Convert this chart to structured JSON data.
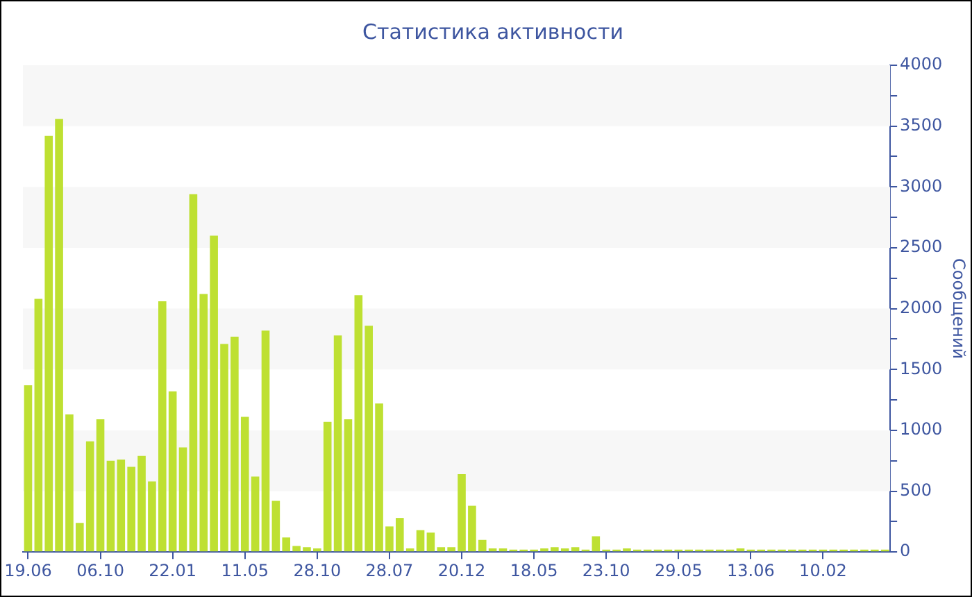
{
  "chart_data": {
    "type": "bar",
    "title": "Статистика активности",
    "ylabel": "Сообщений",
    "categories": [
      "19.06",
      null,
      null,
      null,
      null,
      null,
      null,
      "06.10",
      null,
      null,
      null,
      null,
      null,
      null,
      "22.01",
      null,
      null,
      null,
      null,
      null,
      null,
      "11.05",
      null,
      null,
      null,
      null,
      null,
      null,
      "28.10",
      null,
      null,
      null,
      null,
      null,
      null,
      "28.07",
      null,
      null,
      null,
      null,
      null,
      null,
      "20.12",
      null,
      null,
      null,
      null,
      null,
      null,
      "18.05",
      null,
      null,
      null,
      null,
      null,
      null,
      "23.10",
      null,
      null,
      null,
      null,
      null,
      null,
      "29.05",
      null,
      null,
      null,
      null,
      null,
      null,
      "13.06",
      null,
      null,
      null,
      null,
      null,
      null,
      "10.02",
      null,
      null,
      null,
      null,
      null,
      null
    ],
    "values": [
      1370,
      2080,
      3420,
      3560,
      1130,
      240,
      910,
      1090,
      750,
      760,
      700,
      790,
      580,
      2060,
      1320,
      860,
      2940,
      2120,
      2600,
      1710,
      1770,
      1110,
      620,
      1820,
      420,
      120,
      50,
      40,
      30,
      1070,
      1780,
      1090,
      2110,
      1860,
      1220,
      210,
      280,
      30,
      180,
      160,
      40,
      40,
      640,
      380,
      100,
      30,
      30,
      20,
      20,
      20,
      30,
      40,
      30,
      40,
      20,
      130,
      20,
      20,
      30,
      20,
      20,
      20,
      20,
      20,
      20,
      20,
      20,
      20,
      20,
      30,
      20,
      20,
      20,
      20,
      20,
      20,
      20,
      20,
      20,
      20,
      20,
      20,
      20,
      20
    ],
    "color": "#bee032",
    "ylim": [
      0,
      4000
    ],
    "yticks": [
      0,
      {
        "value": 250,
        "label": null
      },
      500,
      {
        "value": 750,
        "label": null
      },
      1000,
      {
        "value": 1250,
        "label": null
      },
      1500,
      {
        "value": 1750,
        "label": null
      },
      2000,
      {
        "value": 2250,
        "label": null
      },
      2500,
      {
        "value": 2750,
        "label": null
      },
      3000,
      {
        "value": 3250,
        "label": null
      },
      3500,
      {
        "value": 3750,
        "label": null
      },
      4000
    ],
    "bands": [
      {
        "axis": "y",
        "from": 500,
        "to": 1000,
        "color": "#f7f7f7"
      },
      {
        "axis": "y",
        "from": 1500,
        "to": 2000,
        "color": "#f7f7f7"
      },
      {
        "axis": "y",
        "from": 2500,
        "to": 3000,
        "color": "#f7f7f7"
      },
      {
        "axis": "y",
        "from": 3500,
        "to": 4000,
        "color": "#f7f7f7"
      }
    ],
    "grid": false,
    "legend": false
  }
}
